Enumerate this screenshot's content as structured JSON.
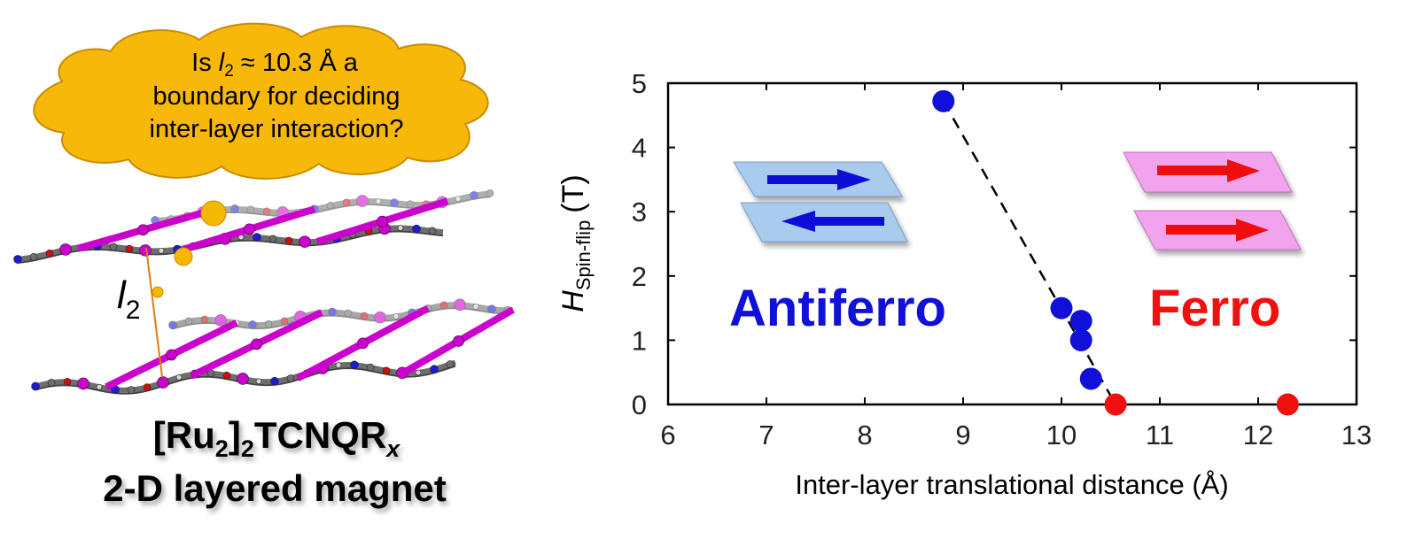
{
  "bubble": {
    "line1_prefix": "Is ",
    "line1_var": "l",
    "line1_sub": "2",
    "line1_suffix": " ≈ 10.3 Å a",
    "line2": "boundary for deciding",
    "line3": "inter-layer interaction?"
  },
  "structure": {
    "distance_var": "l",
    "distance_sub": "2",
    "caption_line1_a": "[Ru",
    "caption_line1_sub1": "2",
    "caption_line1_b": "]",
    "caption_line1_sub2": "2",
    "caption_line1_c": "TCNQR",
    "caption_line1_sub3": "x",
    "caption_line2": "2-D layered magnet",
    "atom_colors": {
      "carbon": "#6e6e6e",
      "ruthenium": "#cc00cc",
      "nitrogen": "#1c1cd6",
      "oxygen": "#d01010",
      "hydrogen": "#d8d8d8",
      "marker": "#f5b800"
    }
  },
  "chart_data": {
    "type": "scatter",
    "xlabel": "Inter-layer translational distance (Å)",
    "ylabel_var": "H",
    "ylabel_sub": "Spin-flip",
    "ylabel_unit": "(T)",
    "xlim": [
      6,
      13
    ],
    "ylim": [
      0,
      5
    ],
    "xticks": [
      "6",
      "7",
      "8",
      "9",
      "10",
      "11",
      "12",
      "13"
    ],
    "yticks": [
      "0",
      "1",
      "2",
      "3",
      "4",
      "5"
    ],
    "series": [
      {
        "color": "#1010d8",
        "points": [
          [
            8.8,
            4.72
          ],
          [
            10.0,
            1.5
          ],
          [
            10.2,
            1.3
          ],
          [
            10.2,
            1.0
          ],
          [
            10.3,
            0.4
          ]
        ]
      },
      {
        "color": "#f01010",
        "points": [
          [
            10.55,
            0.0
          ],
          [
            12.3,
            0.0
          ]
        ]
      }
    ],
    "trend_line": {
      "x": [
        8.8,
        10.55
      ],
      "y": [
        4.72,
        0.0
      ],
      "style": "dashed"
    },
    "annotations": {
      "antiferro_label": "Antiferro",
      "ferro_label": "Ferro",
      "antiferro_color": "#1010d8",
      "ferro_color": "#f01010",
      "antiferro_plate_color": "#a8cbee",
      "ferro_plate_color": "#f2a3ee"
    }
  }
}
